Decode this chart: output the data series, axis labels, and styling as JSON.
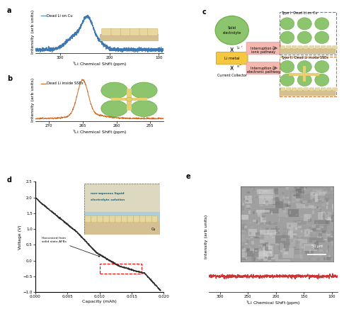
{
  "panel_a": {
    "label": "a",
    "legend": "Dead Li on Cu",
    "line_color": "#3d7ab5",
    "xlabel": "7Li Chemical Shift (ppm)",
    "ylabel": "Intensity (arb units)",
    "xticks": [
      300,
      200,
      100
    ]
  },
  "panel_b": {
    "label": "b",
    "legend": "Dead Li inside SSEs",
    "line_color": "#d2691e",
    "xlabel": "7Li Chemical Shift (ppm)",
    "ylabel": "Intensity (arb units)",
    "xticks": [
      270,
      265,
      260,
      255
    ]
  },
  "panel_c": {
    "label": "c",
    "circle_color": "#8cc56e",
    "circle_edge": "#6aaa44",
    "li_box_color": "#f5c842",
    "li_box_edge": "#c8a020",
    "pink_box_color": "#f5b8b0",
    "pink_box_edge": "#e09090",
    "blue_dash_color": "#4488cc",
    "orange_dash_color": "#cc7733",
    "cu_color": "#d4c090",
    "li_color": "#e8d8a0"
  },
  "panel_d": {
    "label": "d",
    "xlabel": "Capacity (mAh)",
    "ylabel": "Voltage (V)",
    "line_color": "#333333",
    "xticks": [
      0.0,
      0.005,
      0.01,
      0.015,
      0.02
    ],
    "yticks": [
      -1.0,
      -0.5,
      0.0,
      0.5,
      1.0,
      1.5,
      2.0,
      2.5
    ],
    "inset_blue": "#b8d8e8",
    "inset_beige": "#d4c090"
  },
  "panel_e": {
    "label": "e",
    "line_color": "#cc3333",
    "xlabel": "7Li Chemical Shift (ppm)",
    "ylabel": "Intensity (arb units)",
    "xticks": [
      300,
      250,
      200,
      150,
      100
    ],
    "scale_bar": "50 μm"
  },
  "background_color": "#ffffff"
}
